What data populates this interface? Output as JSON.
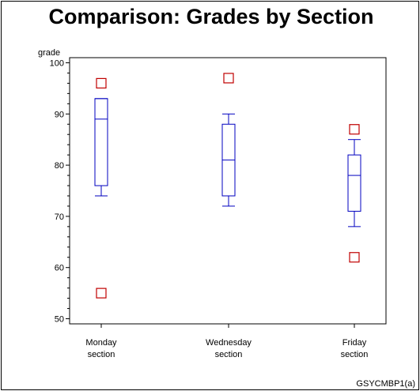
{
  "chart_data": {
    "type": "boxplot",
    "title": "Comparison: Grades by Section",
    "ylabel": "grade",
    "xlabel": "",
    "ylim": [
      49,
      101
    ],
    "yticks": [
      50,
      60,
      70,
      80,
      90,
      100
    ],
    "grid": false,
    "footnote": "GSYCMBP1(a)",
    "categories": [
      {
        "line1": "Monday",
        "line2": "section"
      },
      {
        "line1": "Wednesday",
        "line2": "section"
      },
      {
        "line1": "Friday",
        "line2": "section"
      }
    ],
    "boxes": [
      {
        "q1": 76,
        "median": 89,
        "q3": 93,
        "whisker_low": 74,
        "whisker_high": 93,
        "outliers": [
          96,
          55
        ]
      },
      {
        "q1": 74,
        "median": 81,
        "q3": 88,
        "whisker_low": 72,
        "whisker_high": 90,
        "outliers": [
          97
        ]
      },
      {
        "q1": 71,
        "median": 78,
        "q3": 82,
        "whisker_low": 68,
        "whisker_high": 85,
        "outliers": [
          87,
          62
        ]
      }
    ],
    "colors": {
      "box": "#0000c0",
      "outlier": "#c00000",
      "axis": "#000000"
    }
  }
}
